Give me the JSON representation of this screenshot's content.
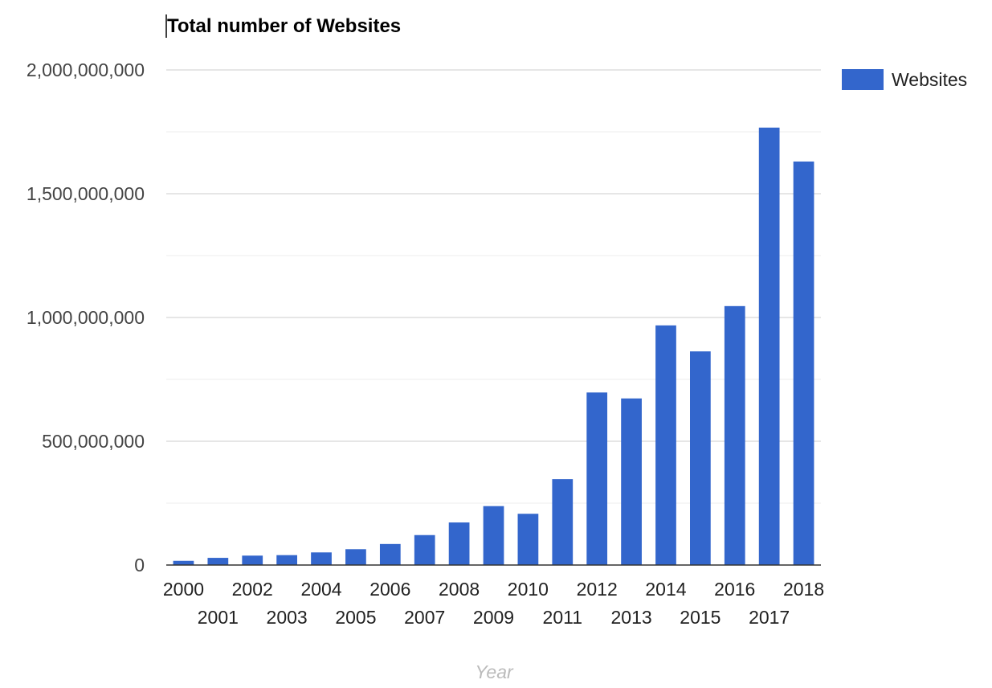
{
  "chart_data": {
    "type": "bar",
    "title": "Total number of Websites",
    "xlabel": "Year",
    "ylabel": "",
    "ylim": [
      0,
      2000000000
    ],
    "y_ticks": [
      0,
      500000000,
      1000000000,
      1500000000,
      2000000000
    ],
    "y_tick_labels": [
      "0",
      "500,000,000",
      "1,000,000,000",
      "1,500,000,000",
      "2,000,000,000"
    ],
    "categories": [
      "2000",
      "2001",
      "2002",
      "2003",
      "2004",
      "2005",
      "2006",
      "2007",
      "2008",
      "2009",
      "2010",
      "2011",
      "2012",
      "2013",
      "2014",
      "2015",
      "2016",
      "2017",
      "2018"
    ],
    "series": [
      {
        "name": "Websites",
        "color": "#3366cc",
        "values": [
          17000000,
          29000000,
          38000000,
          40000000,
          51000000,
          64000000,
          85000000,
          121000000,
          172000000,
          238000000,
          207000000,
          347000000,
          697000000,
          673000000,
          968000000,
          863000000,
          1046000000,
          1767000000,
          1630000000
        ]
      }
    ],
    "grid": true,
    "legend": "right"
  }
}
